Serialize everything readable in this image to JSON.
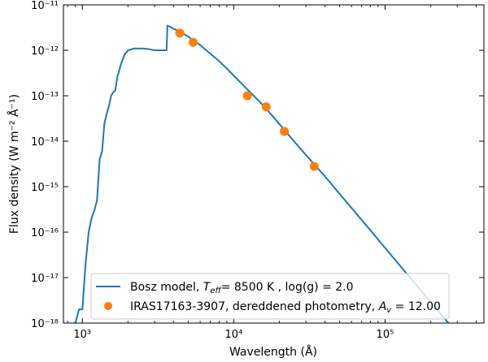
{
  "chart_data": {
    "type": "line",
    "xlabel": "Wavelength (Å)",
    "ylabel": "Flux density (W m⁻² Å⁻¹)",
    "x_scale": "log",
    "y_scale": "log",
    "xlim": [
      750,
      450000
    ],
    "ylim": [
      1e-18,
      1e-11
    ],
    "x_ticks": [
      1000,
      10000,
      100000
    ],
    "x_tick_labels": [
      "10³",
      "10⁴",
      "10⁵"
    ],
    "y_ticks": [
      1e-18,
      1e-17,
      1e-16,
      1e-15,
      1e-14,
      1e-13,
      1e-12,
      1e-11
    ],
    "y_tick_labels": [
      "10⁻¹⁸",
      "10⁻¹⁷",
      "10⁻¹⁶",
      "10⁻¹⁵",
      "10⁻¹⁴",
      "10⁻¹³",
      "10⁻¹²",
      "10⁻¹¹"
    ],
    "grid": false,
    "legend_position": "lower-right",
    "series": [
      {
        "name": "Bosz model, T_eff= 8500 K , log(g) = 2.0",
        "kind": "line",
        "color": "#1f77b4",
        "points": [
          [
            900,
            1e-18
          ],
          [
            950,
            2e-18
          ],
          [
            1000,
            2e-18
          ],
          [
            1050,
            2e-17
          ],
          [
            1100,
            1e-16
          ],
          [
            1150,
            2e-16
          ],
          [
            1200,
            3e-16
          ],
          [
            1250,
            5e-16
          ],
          [
            1300,
            4e-15
          ],
          [
            1350,
            6e-15
          ],
          [
            1400,
            2.5e-14
          ],
          [
            1450,
            4e-14
          ],
          [
            1500,
            6e-14
          ],
          [
            1550,
            1e-13
          ],
          [
            1600,
            1.2e-13
          ],
          [
            1650,
            1.3e-13
          ],
          [
            1700,
            2.5e-13
          ],
          [
            1800,
            5e-13
          ],
          [
            1900,
            8e-13
          ],
          [
            2000,
            1e-12
          ],
          [
            2200,
            1.1e-12
          ],
          [
            2500,
            1.1e-12
          ],
          [
            2800,
            1.05e-12
          ],
          [
            3000,
            1e-12
          ],
          [
            3300,
            1e-12
          ],
          [
            3600,
            1e-12
          ],
          [
            3647,
            3.5e-12
          ],
          [
            3800,
            3.3e-12
          ],
          [
            4000,
            3e-12
          ],
          [
            4500,
            2.5e-12
          ],
          [
            5000,
            2e-12
          ],
          [
            5500,
            1.6e-12
          ],
          [
            6000,
            1.3e-12
          ],
          [
            7000,
            8.5e-13
          ],
          [
            8000,
            5.8e-13
          ],
          [
            9000,
            4e-13
          ],
          [
            10000,
            2.8e-13
          ],
          [
            12000,
            1.5e-13
          ],
          [
            14000,
            9e-14
          ],
          [
            16000,
            5.7e-14
          ],
          [
            20000,
            2.4e-14
          ],
          [
            25000,
            1e-14
          ],
          [
            30000,
            5e-15
          ],
          [
            35000,
            2.8e-15
          ],
          [
            40000,
            1.7e-15
          ],
          [
            50000,
            7e-16
          ],
          [
            60000,
            3.4e-16
          ],
          [
            80000,
            1.1e-16
          ],
          [
            100000,
            4.5e-17
          ],
          [
            130000,
            1.6e-17
          ],
          [
            160000,
            7e-18
          ],
          [
            200000,
            2.9e-18
          ],
          [
            250000,
            1.2e-18
          ],
          [
            270000,
            9e-19
          ]
        ]
      },
      {
        "name": "IRAS17163-3907, dereddened photometry, A_v = 12.00",
        "kind": "scatter",
        "color": "#ff7f0e",
        "points": [
          [
            4400,
            2.4e-12
          ],
          [
            5400,
            1.5e-12
          ],
          [
            12300,
            1e-13
          ],
          [
            16400,
            5.7e-14
          ],
          [
            21600,
            1.65e-14
          ],
          [
            34000,
            2.8e-15
          ]
        ]
      }
    ],
    "legend": {
      "line_label_prefix": "Bosz model, ",
      "line_label_teff_T": "T",
      "line_label_teff_sub": "eff",
      "line_label_rest": "= 8500 K , log(g) = 2.0",
      "scatter_label_prefix": "IRAS17163-3907, dereddened photometry, ",
      "scatter_label_A": "A",
      "scatter_label_sub": "v",
      "scatter_label_rest": " = 12.00"
    }
  }
}
